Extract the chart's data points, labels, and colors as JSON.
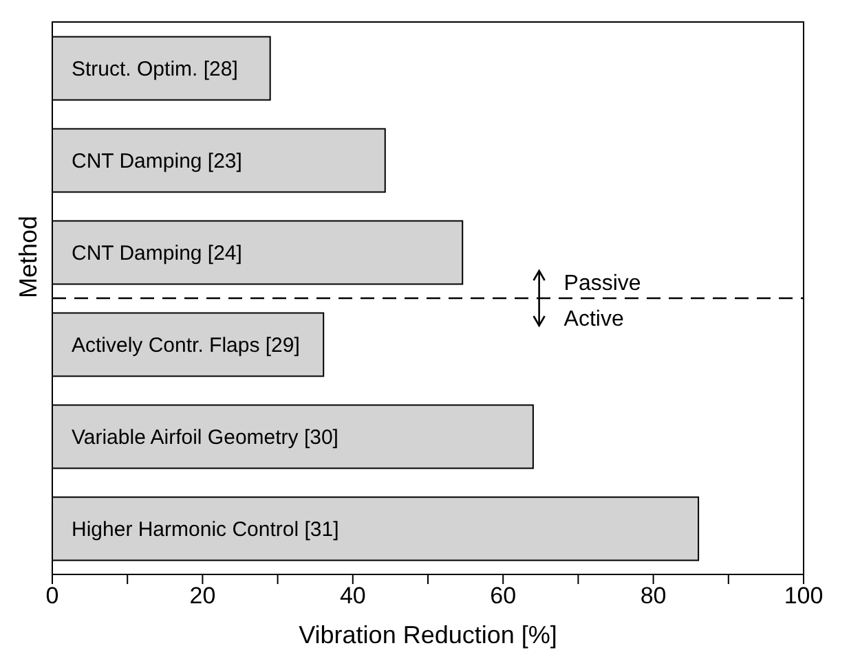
{
  "chart_data": {
    "type": "bar",
    "orientation": "horizontal",
    "xlabel": "Vibration Reduction [%]",
    "ylabel": "Method",
    "categories": [
      "Struct. Optim. [28]",
      "CNT Damping [23]",
      "CNT Damping [24]",
      "Actively Contr. Flaps [29]",
      "Variable Airfoil Geometry [30]",
      "Higher Harmonic Control [31]"
    ],
    "values": [
      29,
      44.3,
      54.6,
      36.1,
      64,
      86
    ],
    "color": "#d3d3d3",
    "xlim": [
      0,
      100
    ],
    "xticks": [
      0,
      {
        "value": 10,
        "label": null
      },
      20,
      {
        "value": 30,
        "label": null
      },
      40,
      {
        "value": 50,
        "label": null
      },
      60,
      {
        "value": 70,
        "label": null
      },
      80,
      {
        "value": 90,
        "label": null
      },
      100
    ],
    "annotations": [
      "Passive",
      "Active"
    ],
    "grid": false,
    "legend": false
  }
}
